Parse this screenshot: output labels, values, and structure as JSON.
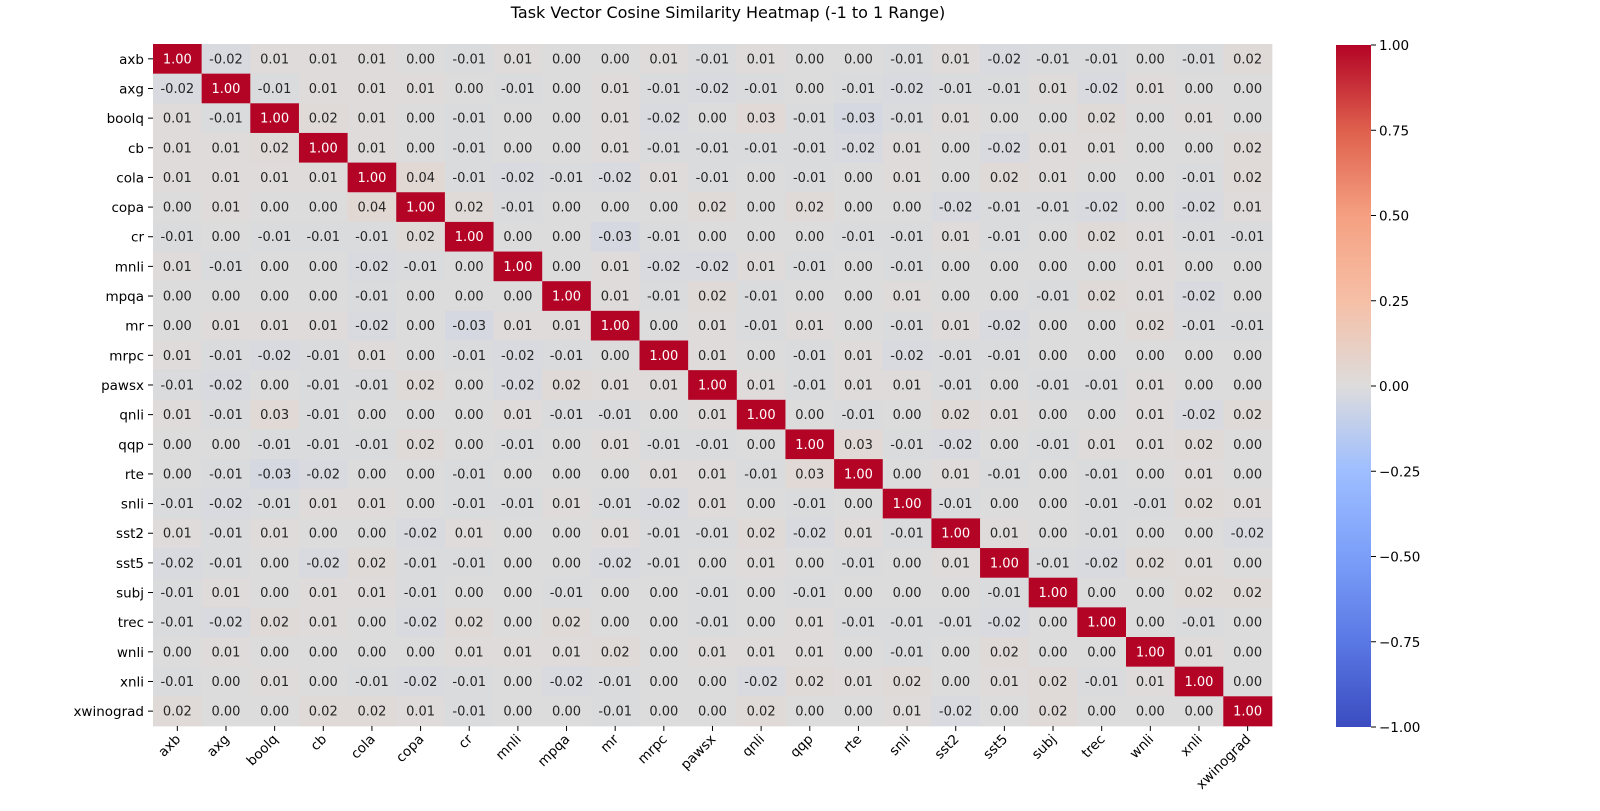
{
  "chart_data": {
    "type": "heatmap",
    "title": "Task Vector Cosine Similarity Heatmap (-1 to 1 Range)",
    "xlabel": "",
    "ylabel": "",
    "colormap": "coolwarm",
    "vmin": -1,
    "vmax": 1,
    "colorbar_ticks": [
      "1.00",
      "0.75",
      "0.50",
      "0.25",
      "0.00",
      "−0.25",
      "−0.50",
      "−0.75",
      "−1.00"
    ],
    "colorbar_tick_values": [
      1,
      0.75,
      0.5,
      0.25,
      0,
      -0.25,
      -0.5,
      -0.75,
      -1
    ],
    "labels": [
      "axb",
      "axg",
      "boolq",
      "cb",
      "cola",
      "copa",
      "cr",
      "mnli",
      "mpqa",
      "mr",
      "mrpc",
      "pawsx",
      "qnli",
      "qqp",
      "rte",
      "snli",
      "sst2",
      "sst5",
      "subj",
      "trec",
      "wnli",
      "xnli",
      "xwinograd"
    ],
    "values": [
      [
        1.0,
        -0.02,
        0.01,
        0.01,
        0.01,
        0.0,
        -0.01,
        0.01,
        0.0,
        0.0,
        0.01,
        -0.01,
        0.01,
        0.0,
        0.0,
        -0.01,
        0.01,
        -0.02,
        -0.01,
        -0.01,
        0.0,
        -0.01,
        0.02
      ],
      [
        -0.02,
        1.0,
        -0.01,
        0.01,
        0.01,
        0.01,
        0.0,
        -0.01,
        0.0,
        0.01,
        -0.01,
        -0.02,
        -0.01,
        0.0,
        -0.01,
        -0.02,
        -0.01,
        -0.01,
        0.01,
        -0.02,
        0.01,
        0.0,
        0.0
      ],
      [
        0.01,
        -0.01,
        1.0,
        0.02,
        0.01,
        0.0,
        -0.01,
        0.0,
        0.0,
        0.01,
        -0.02,
        0.0,
        0.03,
        -0.01,
        -0.03,
        -0.01,
        0.01,
        0.0,
        0.0,
        0.02,
        0.0,
        0.01,
        0.0
      ],
      [
        0.01,
        0.01,
        0.02,
        1.0,
        0.01,
        0.0,
        -0.01,
        0.0,
        0.0,
        0.01,
        -0.01,
        -0.01,
        -0.01,
        -0.01,
        -0.02,
        0.01,
        0.0,
        -0.02,
        0.01,
        0.01,
        0.0,
        0.0,
        0.02
      ],
      [
        0.01,
        0.01,
        0.01,
        0.01,
        1.0,
        0.04,
        -0.01,
        -0.02,
        -0.01,
        -0.02,
        0.01,
        -0.01,
        0.0,
        -0.01,
        0.0,
        0.01,
        0.0,
        0.02,
        0.01,
        0.0,
        0.0,
        -0.01,
        0.02
      ],
      [
        0.0,
        0.01,
        0.0,
        0.0,
        0.04,
        1.0,
        0.02,
        -0.01,
        0.0,
        0.0,
        0.0,
        0.02,
        0.0,
        0.02,
        0.0,
        0.0,
        -0.02,
        -0.01,
        -0.01,
        -0.02,
        0.0,
        -0.02,
        0.01
      ],
      [
        -0.01,
        0.0,
        -0.01,
        -0.01,
        -0.01,
        0.02,
        1.0,
        0.0,
        0.0,
        -0.03,
        -0.01,
        0.0,
        0.0,
        0.0,
        -0.01,
        -0.01,
        0.01,
        -0.01,
        0.0,
        0.02,
        0.01,
        -0.01,
        -0.01
      ],
      [
        0.01,
        -0.01,
        0.0,
        0.0,
        -0.02,
        -0.01,
        0.0,
        1.0,
        0.0,
        0.01,
        -0.02,
        -0.02,
        0.01,
        -0.01,
        0.0,
        -0.01,
        0.0,
        0.0,
        0.0,
        0.0,
        0.01,
        0.0,
        0.0
      ],
      [
        0.0,
        0.0,
        0.0,
        0.0,
        -0.01,
        0.0,
        0.0,
        0.0,
        1.0,
        0.01,
        -0.01,
        0.02,
        -0.01,
        0.0,
        0.0,
        0.01,
        0.0,
        0.0,
        -0.01,
        0.02,
        0.01,
        -0.02,
        0.0
      ],
      [
        0.0,
        0.01,
        0.01,
        0.01,
        -0.02,
        0.0,
        -0.03,
        0.01,
        0.01,
        1.0,
        0.0,
        0.01,
        -0.01,
        0.01,
        0.0,
        -0.01,
        0.01,
        -0.02,
        0.0,
        0.0,
        0.02,
        -0.01,
        -0.01
      ],
      [
        0.01,
        -0.01,
        -0.02,
        -0.01,
        0.01,
        0.0,
        -0.01,
        -0.02,
        -0.01,
        0.0,
        1.0,
        0.01,
        0.0,
        -0.01,
        0.01,
        -0.02,
        -0.01,
        -0.01,
        0.0,
        0.0,
        0.0,
        0.0,
        0.0
      ],
      [
        -0.01,
        -0.02,
        0.0,
        -0.01,
        -0.01,
        0.02,
        0.0,
        -0.02,
        0.02,
        0.01,
        0.01,
        1.0,
        0.01,
        -0.01,
        0.01,
        0.01,
        -0.01,
        0.0,
        -0.01,
        -0.01,
        0.01,
        0.0,
        0.0
      ],
      [
        0.01,
        -0.01,
        0.03,
        -0.01,
        0.0,
        0.0,
        0.0,
        0.01,
        -0.01,
        -0.01,
        0.0,
        0.01,
        1.0,
        0.0,
        -0.01,
        0.0,
        0.02,
        0.01,
        0.0,
        0.0,
        0.01,
        -0.02,
        0.02
      ],
      [
        0.0,
        0.0,
        -0.01,
        -0.01,
        -0.01,
        0.02,
        0.0,
        -0.01,
        0.0,
        0.01,
        -0.01,
        -0.01,
        0.0,
        1.0,
        0.03,
        -0.01,
        -0.02,
        0.0,
        -0.01,
        0.01,
        0.01,
        0.02,
        0.0
      ],
      [
        0.0,
        -0.01,
        -0.03,
        -0.02,
        0.0,
        0.0,
        -0.01,
        0.0,
        0.0,
        0.0,
        0.01,
        0.01,
        -0.01,
        0.03,
        1.0,
        0.0,
        0.01,
        -0.01,
        0.0,
        -0.01,
        0.0,
        0.01,
        0.0
      ],
      [
        -0.01,
        -0.02,
        -0.01,
        0.01,
        0.01,
        0.0,
        -0.01,
        -0.01,
        0.01,
        -0.01,
        -0.02,
        0.01,
        0.0,
        -0.01,
        0.0,
        1.0,
        -0.01,
        0.0,
        0.0,
        -0.01,
        -0.01,
        0.02,
        0.01
      ],
      [
        0.01,
        -0.01,
        0.01,
        0.0,
        0.0,
        -0.02,
        0.01,
        0.0,
        0.0,
        0.01,
        -0.01,
        -0.01,
        0.02,
        -0.02,
        0.01,
        -0.01,
        1.0,
        0.01,
        0.0,
        -0.01,
        0.0,
        0.0,
        -0.02
      ],
      [
        -0.02,
        -0.01,
        0.0,
        -0.02,
        0.02,
        -0.01,
        -0.01,
        0.0,
        0.0,
        -0.02,
        -0.01,
        0.0,
        0.01,
        0.0,
        -0.01,
        0.0,
        0.01,
        1.0,
        -0.01,
        -0.02,
        0.02,
        0.01,
        0.0
      ],
      [
        -0.01,
        0.01,
        0.0,
        0.01,
        0.01,
        -0.01,
        0.0,
        0.0,
        -0.01,
        0.0,
        0.0,
        -0.01,
        0.0,
        -0.01,
        0.0,
        0.0,
        0.0,
        -0.01,
        1.0,
        0.0,
        0.0,
        0.02,
        0.02
      ],
      [
        -0.01,
        -0.02,
        0.02,
        0.01,
        0.0,
        -0.02,
        0.02,
        0.0,
        0.02,
        0.0,
        0.0,
        -0.01,
        0.0,
        0.01,
        -0.01,
        -0.01,
        -0.01,
        -0.02,
        0.0,
        1.0,
        0.0,
        -0.01,
        0.0
      ],
      [
        0.0,
        0.01,
        0.0,
        0.0,
        0.0,
        0.0,
        0.01,
        0.01,
        0.01,
        0.02,
        0.0,
        0.01,
        0.01,
        0.01,
        0.0,
        -0.01,
        0.0,
        0.02,
        0.0,
        0.0,
        1.0,
        0.01,
        0.0
      ],
      [
        -0.01,
        0.0,
        0.01,
        0.0,
        -0.01,
        -0.02,
        -0.01,
        0.0,
        -0.02,
        -0.01,
        0.0,
        0.0,
        -0.02,
        0.02,
        0.01,
        0.02,
        0.0,
        0.01,
        0.02,
        -0.01,
        0.01,
        1.0,
        0.0
      ],
      [
        0.02,
        0.0,
        0.0,
        0.02,
        0.02,
        0.01,
        -0.01,
        0.0,
        0.0,
        -0.01,
        0.0,
        0.0,
        0.02,
        0.0,
        0.0,
        0.01,
        -0.02,
        0.0,
        0.02,
        0.0,
        0.0,
        0.0,
        1.0
      ]
    ]
  }
}
